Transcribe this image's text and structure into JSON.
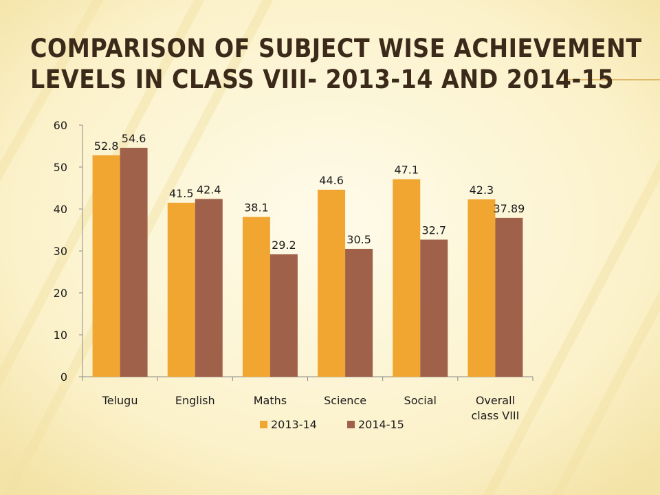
{
  "title_lines": [
    "Comparison of subject wise achievement",
    "levels in  class VIII- 2013-14 and 2014-15"
  ],
  "colors": {
    "series_2013": "#f0a630",
    "series_2014": "#a0614a",
    "axis": "#8a8a8a",
    "background": "#fdf7dc"
  },
  "chart_data": {
    "type": "bar",
    "categories": [
      "Telugu",
      "English",
      "Maths",
      "Science",
      "Social",
      "Overall class VIII"
    ],
    "category_lines": [
      [
        "Telugu"
      ],
      [
        "English"
      ],
      [
        "Maths"
      ],
      [
        "Science"
      ],
      [
        "Social"
      ],
      [
        "Overall",
        "class VIII"
      ]
    ],
    "series": [
      {
        "name": "2013-14",
        "values": [
          52.8,
          41.5,
          38.1,
          44.6,
          47.1,
          42.3
        ],
        "labels": [
          "52.8",
          "41.5",
          "38.1",
          "44.6",
          "47.1",
          "42.3"
        ]
      },
      {
        "name": "2014-15",
        "values": [
          54.6,
          42.4,
          29.2,
          30.5,
          32.7,
          37.89
        ],
        "labels": [
          "54.6",
          "42.4",
          "29.2",
          "30.5",
          "32.7",
          "37.89"
        ]
      }
    ],
    "ylim": [
      0,
      60
    ],
    "yticks": [
      "0",
      "10",
      "20",
      "30",
      "40",
      "50",
      "60"
    ],
    "grid": false,
    "legend": "bottom"
  }
}
